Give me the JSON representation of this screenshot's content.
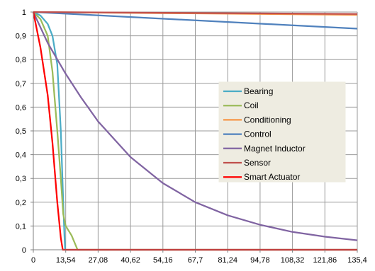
{
  "chart_data": {
    "type": "line",
    "title": "",
    "xlabel": "",
    "ylabel": "",
    "xlim": [
      0,
      135.4
    ],
    "ylim": [
      0,
      1
    ],
    "x_ticks": [
      "0",
      "13,54",
      "27,08",
      "40,62",
      "54,16",
      "67,7",
      "81,24",
      "94,78",
      "108,32",
      "121,86",
      "135,4"
    ],
    "y_ticks": [
      "0",
      "0,1",
      "0,2",
      "0,3",
      "0,4",
      "0,5",
      "0,6",
      "0,7",
      "0,8",
      "0,9",
      "1"
    ],
    "grid": true,
    "legend_position": "center-right",
    "series": [
      {
        "name": "Bearing",
        "color": "#4BACC6",
        "points": [
          [
            0,
            1
          ],
          [
            3,
            0.985
          ],
          [
            6,
            0.95
          ],
          [
            8,
            0.9
          ],
          [
            10,
            0.78
          ],
          [
            11.5,
            0.5
          ],
          [
            12.5,
            0.2
          ],
          [
            13,
            0.06
          ],
          [
            13.3,
            0
          ],
          [
            135.4,
            0
          ]
        ]
      },
      {
        "name": "Coil",
        "color": "#9BBB59",
        "points": [
          [
            0,
            1
          ],
          [
            3,
            0.97
          ],
          [
            6,
            0.9
          ],
          [
            8,
            0.75
          ],
          [
            10,
            0.5
          ],
          [
            11.5,
            0.3
          ],
          [
            12.5,
            0.15
          ],
          [
            13.54,
            0.1
          ],
          [
            16,
            0.06
          ],
          [
            18.5,
            0
          ],
          [
            135.4,
            0
          ]
        ]
      },
      {
        "name": "Conditioning",
        "color": "#F79646",
        "points": [
          [
            0,
            1
          ],
          [
            135.4,
            0.988
          ]
        ]
      },
      {
        "name": "Control",
        "color": "#4F81BD",
        "points": [
          [
            0,
            1
          ],
          [
            135.4,
            0.93
          ]
        ]
      },
      {
        "name": "Magnet Inductor",
        "color": "#8064A2",
        "points": [
          [
            0,
            1
          ],
          [
            6,
            0.87
          ],
          [
            13.54,
            0.74
          ],
          [
            20,
            0.64
          ],
          [
            27.08,
            0.54
          ],
          [
            40.62,
            0.39
          ],
          [
            54.16,
            0.28
          ],
          [
            67.7,
            0.2
          ],
          [
            81.24,
            0.145
          ],
          [
            94.78,
            0.105
          ],
          [
            108.32,
            0.075
          ],
          [
            121.86,
            0.055
          ],
          [
            135.4,
            0.04
          ]
        ]
      },
      {
        "name": "Sensor",
        "color": "#C0504D",
        "points": [
          [
            0,
            1
          ],
          [
            135.4,
            0.992
          ]
        ]
      },
      {
        "name": "Smart Actuator",
        "color": "#FF0000",
        "points": [
          [
            0,
            1
          ],
          [
            3,
            0.85
          ],
          [
            6,
            0.65
          ],
          [
            8,
            0.45
          ],
          [
            10,
            0.2
          ],
          [
            11.5,
            0.05
          ],
          [
            12.3,
            0
          ],
          [
            135.4,
            0
          ]
        ]
      }
    ]
  }
}
